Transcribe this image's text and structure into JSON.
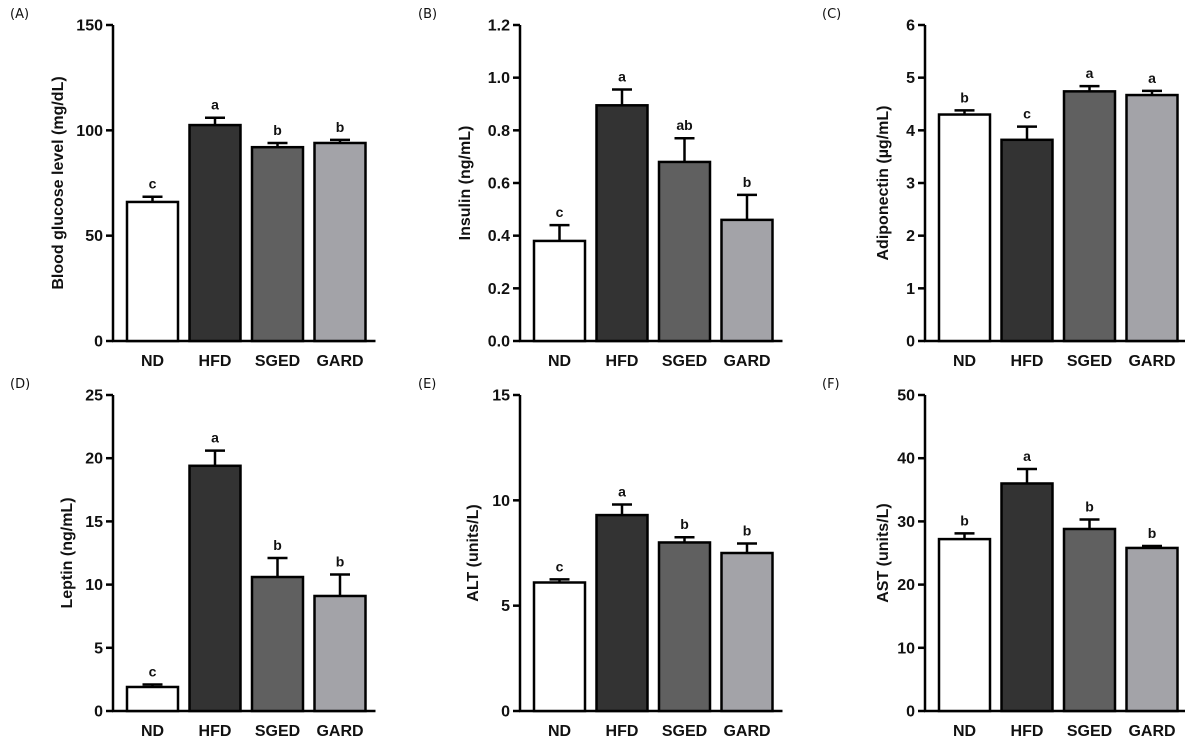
{
  "colors": {
    "ND": "#ffffff",
    "HFD": "#333333",
    "SGED": "#606060",
    "GARD": "#a3a3a8",
    "stroke": "#000000"
  },
  "chart_data": [
    {
      "type": "bar",
      "panel": "(A)",
      "ylabel": "Blood glucose level (mg/dL)",
      "ylim": [
        0,
        150
      ],
      "yticks": [
        0,
        50,
        100,
        150
      ],
      "categories": [
        "ND",
        "HFD",
        "SGED",
        "GARD"
      ],
      "values": [
        66,
        102.5,
        92,
        94
      ],
      "errors": [
        2.5,
        3.5,
        2,
        1.5
      ],
      "labels": [
        "c",
        "a",
        "b",
        "b"
      ]
    },
    {
      "type": "bar",
      "panel": "(B)",
      "ylabel": "Insulin (ng/mL)",
      "ylim": [
        0,
        1.2
      ],
      "yticks": [
        "0.0",
        "0.2",
        "0.4",
        "0.6",
        "0.8",
        "1.0",
        "1.2"
      ],
      "categories": [
        "ND",
        "HFD",
        "SGED",
        "GARD"
      ],
      "values": [
        0.38,
        0.895,
        0.68,
        0.46
      ],
      "errors": [
        0.06,
        0.06,
        0.09,
        0.095
      ],
      "labels": [
        "c",
        "a",
        "ab",
        "b"
      ]
    },
    {
      "type": "bar",
      "panel": "(C)",
      "ylabel": "Adiponectin (µg/mL)",
      "ylim": [
        0,
        6
      ],
      "yticks": [
        0,
        1,
        2,
        3,
        4,
        5,
        6
      ],
      "categories": [
        "ND",
        "HFD",
        "SGED",
        "GARD"
      ],
      "values": [
        4.3,
        3.82,
        4.74,
        4.67
      ],
      "errors": [
        0.08,
        0.25,
        0.1,
        0.08
      ],
      "labels": [
        "b",
        "c",
        "a",
        "a"
      ]
    },
    {
      "type": "bar",
      "panel": "(D)",
      "ylabel": "Leptin (ng/mL)",
      "ylim": [
        0,
        25
      ],
      "yticks": [
        0,
        5,
        10,
        15,
        20,
        25
      ],
      "categories": [
        "ND",
        "HFD",
        "SGED",
        "GARD"
      ],
      "values": [
        1.9,
        19.4,
        10.6,
        9.1
      ],
      "errors": [
        0.2,
        1.2,
        1.5,
        1.7
      ],
      "labels": [
        "c",
        "a",
        "b",
        "b"
      ]
    },
    {
      "type": "bar",
      "panel": "(E)",
      "ylabel": "ALT (units/L)",
      "ylim": [
        0,
        15
      ],
      "yticks": [
        0,
        5,
        10,
        15
      ],
      "categories": [
        "ND",
        "HFD",
        "SGED",
        "GARD"
      ],
      "values": [
        6.1,
        9.3,
        8.0,
        7.5
      ],
      "errors": [
        0.15,
        0.5,
        0.25,
        0.45
      ],
      "labels": [
        "c",
        "a",
        "b",
        "b"
      ]
    },
    {
      "type": "bar",
      "panel": "(F)",
      "ylabel": "AST (units/L)",
      "ylim": [
        0,
        50
      ],
      "yticks": [
        0,
        10,
        20,
        30,
        40,
        50
      ],
      "categories": [
        "ND",
        "HFD",
        "SGED",
        "GARD"
      ],
      "values": [
        27.2,
        36.0,
        28.8,
        25.8
      ],
      "errors": [
        0.9,
        2.3,
        1.5,
        0.3
      ],
      "labels": [
        "b",
        "a",
        "b",
        "b"
      ]
    }
  ]
}
